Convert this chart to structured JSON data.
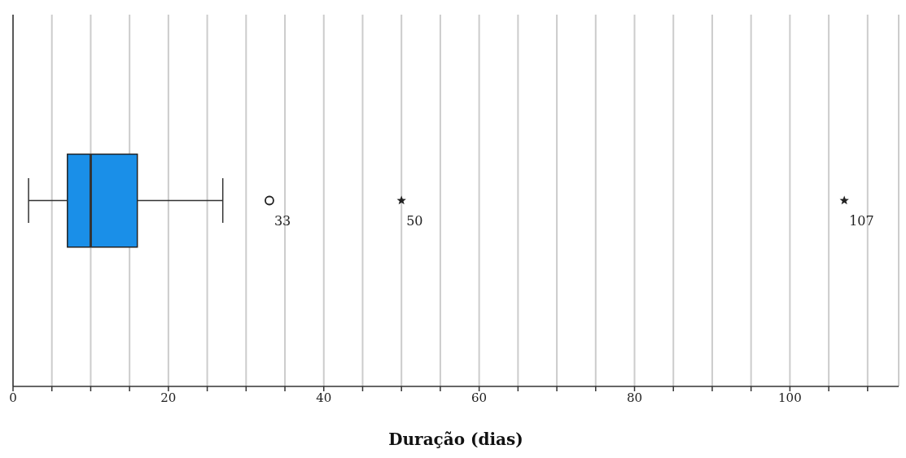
{
  "chart_data": {
    "type": "box",
    "orientation": "horizontal",
    "xlabel": "Duração (dias)",
    "categories": [
      null
    ],
    "color": "#1a8fe8",
    "boxes": [
      {
        "low": 2,
        "q1": 7,
        "median": 10,
        "q3": 16,
        "high": 27,
        "outliers": [
          33,
          50,
          107
        ]
      }
    ],
    "xlim": [
      0,
      114
    ],
    "xticks": [
      0,
      {
        "value": 5,
        "label": null
      },
      {
        "value": 10,
        "label": null
      },
      {
        "value": 15,
        "label": null
      },
      20,
      {
        "value": 25,
        "label": null
      },
      {
        "value": 30,
        "label": null
      },
      {
        "value": 35,
        "label": null
      },
      40,
      {
        "value": 45,
        "label": null
      },
      {
        "value": 50,
        "label": null
      },
      {
        "value": 55,
        "label": null
      },
      60,
      {
        "value": 65,
        "label": null
      },
      {
        "value": 70,
        "label": null
      },
      {
        "value": 75,
        "label": null
      },
      80,
      {
        "value": 85,
        "label": null
      },
      {
        "value": 90,
        "label": null
      },
      {
        "value": 95,
        "label": null
      },
      100,
      {
        "value": 105,
        "label": null
      },
      {
        "value": 110,
        "label": null
      }
    ],
    "grid": "x",
    "annotations": [
      "33",
      "50",
      "107"
    ]
  }
}
